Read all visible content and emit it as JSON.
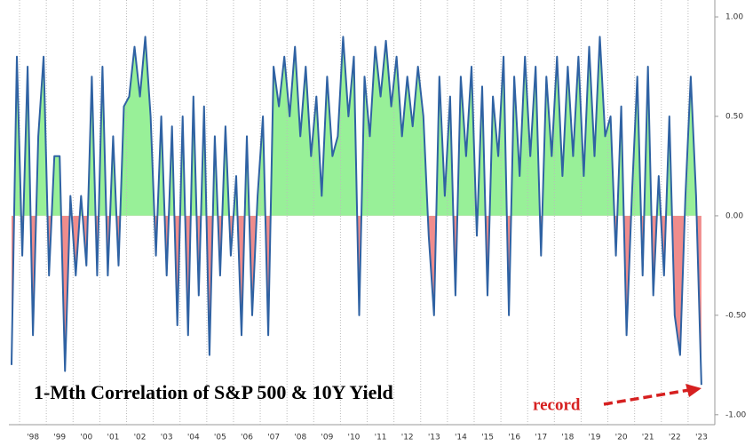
{
  "chart_data": {
    "type": "line",
    "title": "1-Mth Correlation of S&P 500 & 10Y Yield",
    "annotation": "record",
    "x": [
      1997.7,
      1997.9,
      1998.1,
      1998.3,
      1998.5,
      1998.7,
      1998.9,
      1999.1,
      1999.3,
      1999.5,
      1999.7,
      1999.9,
      2000.1,
      2000.3,
      2000.5,
      2000.7,
      2000.9,
      2001.1,
      2001.3,
      2001.5,
      2001.7,
      2001.9,
      2002.1,
      2002.3,
      2002.5,
      2002.7,
      2002.9,
      2003.1,
      2003.3,
      2003.5,
      2003.7,
      2003.9,
      2004.1,
      2004.3,
      2004.5,
      2004.7,
      2004.9,
      2005.1,
      2005.3,
      2005.5,
      2005.7,
      2005.9,
      2006.1,
      2006.3,
      2006.5,
      2006.7,
      2006.9,
      2007.1,
      2007.3,
      2007.5,
      2007.7,
      2007.9,
      2008.1,
      2008.3,
      2008.5,
      2008.7,
      2008.9,
      2009.1,
      2009.3,
      2009.5,
      2009.7,
      2009.9,
      2010.1,
      2010.3,
      2010.5,
      2010.7,
      2010.9,
      2011.1,
      2011.3,
      2011.5,
      2011.7,
      2011.9,
      2012.1,
      2012.3,
      2012.5,
      2012.7,
      2012.9,
      2013.1,
      2013.3,
      2013.5,
      2013.7,
      2013.9,
      2014.1,
      2014.3,
      2014.5,
      2014.7,
      2014.9,
      2015.1,
      2015.3,
      2015.5,
      2015.7,
      2015.9,
      2016.1,
      2016.3,
      2016.5,
      2016.7,
      2016.9,
      2017.1,
      2017.3,
      2017.5,
      2017.7,
      2017.9,
      2018.1,
      2018.3,
      2018.5,
      2018.7,
      2018.9,
      2019.1,
      2019.3,
      2019.5,
      2019.7,
      2019.9,
      2020.1,
      2020.3,
      2020.5,
      2020.7,
      2020.9,
      2021.1,
      2021.3,
      2021.5,
      2021.7,
      2021.9,
      2022.1,
      2022.3,
      2022.5,
      2022.7,
      2022.9,
      2023.1,
      2023.3,
      2023.5
    ],
    "series": [
      {
        "color": "#2f62a3",
        "values": [
          -0.75,
          0.8,
          -0.2,
          0.75,
          -0.6,
          0.4,
          0.8,
          -0.3,
          0.3,
          0.3,
          -0.78,
          0.1,
          -0.3,
          0.1,
          -0.25,
          0.7,
          -0.3,
          0.75,
          -0.3,
          0.4,
          -0.25,
          0.55,
          0.6,
          0.85,
          0.6,
          0.9,
          0.5,
          -0.2,
          0.5,
          -0.3,
          0.45,
          -0.55,
          0.5,
          -0.6,
          0.6,
          -0.4,
          0.55,
          -0.7,
          0.4,
          -0.3,
          0.45,
          -0.2,
          0.2,
          -0.6,
          0.4,
          -0.5,
          0.1,
          0.5,
          -0.6,
          0.75,
          0.55,
          0.8,
          0.5,
          0.85,
          0.4,
          0.75,
          0.3,
          0.6,
          0.1,
          0.7,
          0.3,
          0.4,
          0.9,
          0.5,
          0.8,
          -0.5,
          0.7,
          0.4,
          0.85,
          0.6,
          0.88,
          0.55,
          0.8,
          0.4,
          0.7,
          0.45,
          0.75,
          0.5,
          -0.1,
          -0.5,
          0.7,
          0.1,
          0.6,
          -0.4,
          0.7,
          0.3,
          0.75,
          -0.1,
          0.65,
          -0.4,
          0.6,
          0.3,
          0.8,
          -0.5,
          0.7,
          0.2,
          0.8,
          0.3,
          0.75,
          -0.2,
          0.7,
          0.3,
          0.8,
          0.2,
          0.75,
          0.3,
          0.8,
          0.2,
          0.85,
          0.3,
          0.9,
          0.4,
          0.5,
          -0.2,
          0.55,
          -0.6,
          0.1,
          0.7,
          -0.3,
          0.75,
          -0.4,
          0.2,
          -0.3,
          0.5,
          -0.5,
          -0.7,
          0.1,
          0.7,
          0.1,
          -0.85
        ]
      }
    ],
    "positive_fill": "#98f098",
    "negative_fill": "#f08c8c",
    "xlim": [
      1997.6,
      2024.0
    ],
    "ylim": [
      -1.05,
      1.085
    ],
    "xticks": [
      {
        "value": 1998,
        "label": "'98"
      },
      {
        "value": 1999,
        "label": "'99"
      },
      {
        "value": 2000,
        "label": "'00"
      },
      {
        "value": 2001,
        "label": "'01"
      },
      {
        "value": 2002,
        "label": "'02"
      },
      {
        "value": 2003,
        "label": "'03"
      },
      {
        "value": 2004,
        "label": "'04"
      },
      {
        "value": 2005,
        "label": "'05"
      },
      {
        "value": 2006,
        "label": "'06"
      },
      {
        "value": 2007,
        "label": "'07"
      },
      {
        "value": 2008,
        "label": "'08"
      },
      {
        "value": 2009,
        "label": "'09"
      },
      {
        "value": 2010,
        "label": "'10"
      },
      {
        "value": 2011,
        "label": "'11"
      },
      {
        "value": 2012,
        "label": "'12"
      },
      {
        "value": 2013,
        "label": "'13"
      },
      {
        "value": 2014,
        "label": "'14"
      },
      {
        "value": 2015,
        "label": "'15"
      },
      {
        "value": 2016,
        "label": "'16"
      },
      {
        "value": 2017,
        "label": "'17"
      },
      {
        "value": 2018,
        "label": "'18"
      },
      {
        "value": 2019,
        "label": "'19"
      },
      {
        "value": 2020,
        "label": "'20"
      },
      {
        "value": 2021,
        "label": "'21"
      },
      {
        "value": 2022,
        "label": "'22"
      },
      {
        "value": 2023,
        "label": "'23"
      }
    ],
    "yticks": [
      {
        "value": 1,
        "label": "1.00"
      },
      {
        "value": 0.5,
        "label": "0.50"
      },
      {
        "value": 0,
        "label": "0.00"
      },
      {
        "value": -0.5,
        "label": "-0.50"
      },
      {
        "value": -1,
        "label": "-1.00"
      }
    ],
    "grid": true
  }
}
